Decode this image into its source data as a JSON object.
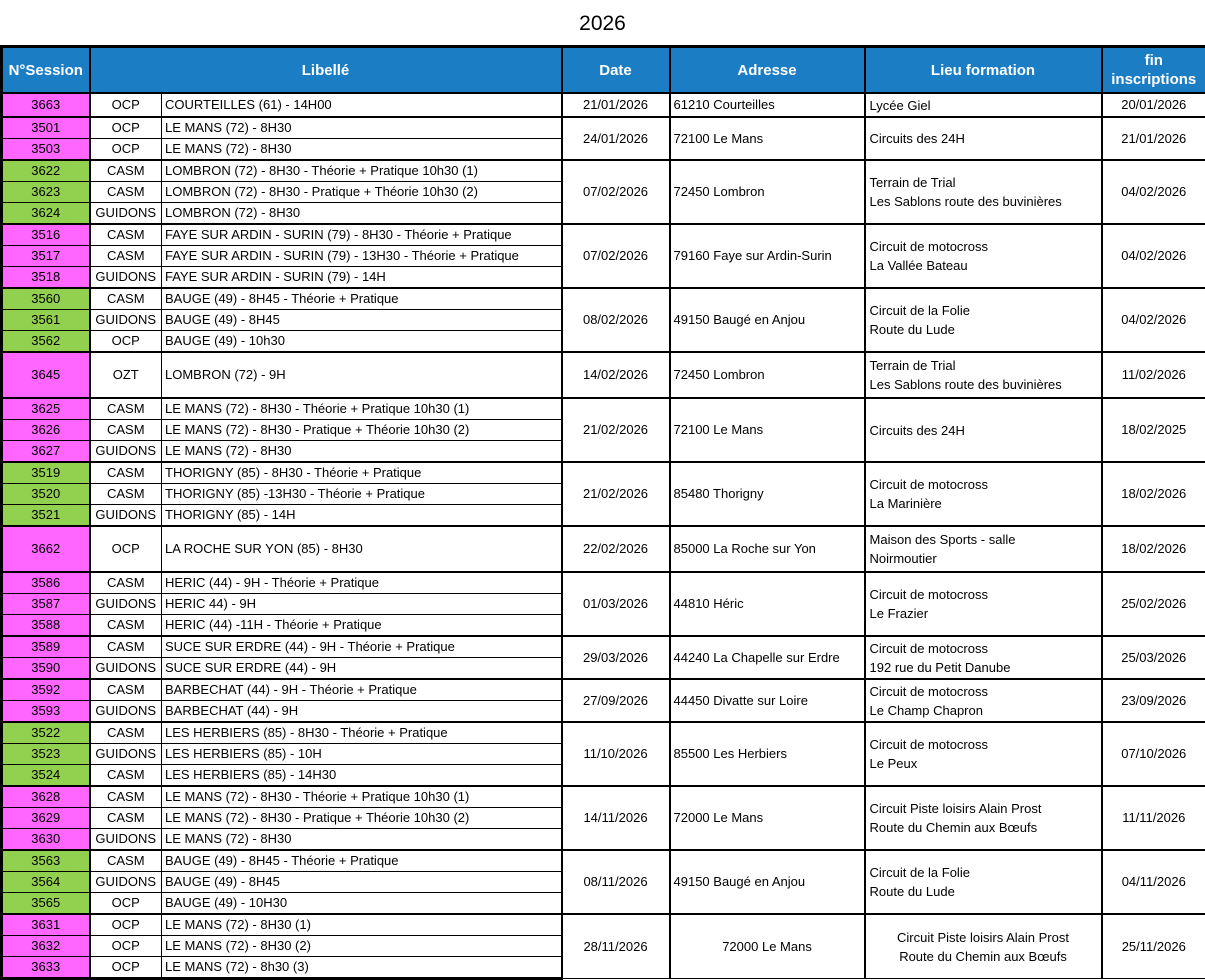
{
  "title": "2026",
  "columns": {
    "session": "N°Session",
    "libelle": "Libellé",
    "date": "Date",
    "adresse": "Adresse",
    "lieu": "Lieu formation",
    "fin": "fin inscriptions"
  },
  "colors": {
    "header_bg": "#1B7EC5",
    "header_text": "#FFFFFF",
    "pink": "#FF66FF",
    "green": "#92D050",
    "border": "#000000",
    "cell_bg": "#FFFFFF"
  },
  "groups": [
    {
      "date": "21/01/2026",
      "adresse": "61210 Courteilles",
      "lieu": [
        "Lycée Giel"
      ],
      "fin": "20/01/2026",
      "sessions": [
        {
          "num": "3663",
          "color": "pink",
          "type": "OCP",
          "libelle": "COURTEILLES (61) - 14H00"
        }
      ]
    },
    {
      "date": "24/01/2026",
      "adresse": "72100 Le Mans",
      "lieu": [
        "Circuits des 24H"
      ],
      "fin": "21/01/2026",
      "sessions": [
        {
          "num": "3501",
          "color": "pink",
          "type": "OCP",
          "libelle": "LE MANS (72) - 8H30"
        },
        {
          "num": "3503",
          "color": "pink",
          "type": "OCP",
          "libelle": "LE MANS (72) - 8H30"
        }
      ]
    },
    {
      "date": "07/02/2026",
      "adresse": "72450 Lombron",
      "lieu": [
        "Terrain de Trial",
        "Les Sablons route des buvinières"
      ],
      "fin": "04/02/2026",
      "sessions": [
        {
          "num": "3622",
          "color": "green",
          "type": "CASM",
          "libelle": "LOMBRON (72) - 8H30 - Théorie + Pratique 10h30 (1)"
        },
        {
          "num": "3623",
          "color": "green",
          "type": "CASM",
          "libelle": "LOMBRON (72) - 8H30 - Pratique + Théorie 10h30 (2)"
        },
        {
          "num": "3624",
          "color": "green",
          "type": "GUIDONS",
          "libelle": "LOMBRON (72) - 8H30"
        }
      ]
    },
    {
      "date": "07/02/2026",
      "adresse": "79160 Faye sur Ardin-Surin",
      "lieu": [
        "Circuit de motocross",
        "La Vallée Bateau"
      ],
      "fin": "04/02/2026",
      "sessions": [
        {
          "num": "3516",
          "color": "pink",
          "type": "CASM",
          "libelle": "FAYE SUR ARDIN - SURIN (79) - 8H30 - Théorie + Pratique"
        },
        {
          "num": "3517",
          "color": "pink",
          "type": "CASM",
          "libelle": "FAYE SUR ARDIN - SURIN (79) - 13H30 - Théorie + Pratique"
        },
        {
          "num": "3518",
          "color": "pink",
          "type": "GUIDONS",
          "libelle": "FAYE SUR ARDIN - SURIN (79) - 14H"
        }
      ]
    },
    {
      "date": "08/02/2026",
      "adresse": "49150 Baugé en Anjou",
      "lieu": [
        "Circuit de la Folie",
        "Route du Lude"
      ],
      "fin": "04/02/2026",
      "sessions": [
        {
          "num": "3560",
          "color": "green",
          "type": "CASM",
          "libelle": "BAUGE (49) - 8H45 - Théorie + Pratique"
        },
        {
          "num": "3561",
          "color": "green",
          "type": "GUIDONS",
          "libelle": "BAUGE (49) - 8H45"
        },
        {
          "num": "3562",
          "color": "green",
          "type": "OCP",
          "libelle": "BAUGE (49) - 10h30"
        }
      ]
    },
    {
      "date": "14/02/2026",
      "adresse": "72450 Lombron",
      "tall": true,
      "lieu": [
        "Terrain de Trial",
        "Les Sablons route des buvinières"
      ],
      "fin": "11/02/2026",
      "sessions": [
        {
          "num": "3645",
          "color": "pink",
          "type": "OZT",
          "libelle": "LOMBRON (72) - 9H"
        }
      ]
    },
    {
      "date": "21/02/2026",
      "adresse": "72100 Le Mans",
      "lieu": [
        "Circuits des 24H"
      ],
      "fin": "18/02/2025",
      "sessions": [
        {
          "num": "3625",
          "color": "pink",
          "type": "CASM",
          "libelle": "LE MANS (72) - 8H30 - Théorie + Pratique 10h30 (1)"
        },
        {
          "num": "3626",
          "color": "pink",
          "type": "CASM",
          "libelle": "LE MANS (72) - 8H30 - Pratique + Théorie 10h30 (2)"
        },
        {
          "num": "3627",
          "color": "pink",
          "type": "GUIDONS",
          "libelle": "LE MANS (72) - 8H30"
        }
      ]
    },
    {
      "date": "21/02/2026",
      "adresse": "85480 Thorigny",
      "lieu": [
        "Circuit de motocross",
        "La Marinière"
      ],
      "fin": "18/02/2026",
      "sessions": [
        {
          "num": "3519",
          "color": "green",
          "type": "CASM",
          "libelle": "THORIGNY (85) - 8H30 - Théorie + Pratique"
        },
        {
          "num": "3520",
          "color": "green",
          "type": "CASM",
          "libelle": "THORIGNY (85) -13H30 - Théorie + Pratique"
        },
        {
          "num": "3521",
          "color": "green",
          "type": "GUIDONS",
          "libelle": "THORIGNY (85) - 14H"
        }
      ]
    },
    {
      "date": "22/02/2026",
      "adresse": "85000 La Roche sur Yon",
      "tall": true,
      "lieu": [
        "Maison des Sports - salle",
        "Noirmoutier"
      ],
      "fin": "18/02/2026",
      "sessions": [
        {
          "num": "3662",
          "color": "pink",
          "type": "OCP",
          "libelle": "LA ROCHE SUR YON (85) - 8H30"
        }
      ]
    },
    {
      "date": "01/03/2026",
      "adresse": "44810 Héric",
      "lieu": [
        "Circuit de motocross",
        "Le Frazier"
      ],
      "fin": "25/02/2026",
      "sessions": [
        {
          "num": "3586",
          "color": "pink",
          "type": "CASM",
          "libelle": "HERIC (44) - 9H - Théorie + Pratique"
        },
        {
          "num": "3587",
          "color": "pink",
          "type": "GUIDONS",
          "libelle": "HERIC 44) - 9H"
        },
        {
          "num": "3588",
          "color": "pink",
          "type": "CASM",
          "libelle": "HERIC (44) -11H - Théorie + Pratique"
        }
      ]
    },
    {
      "date": "29/03/2026",
      "adresse": "44240 La Chapelle sur Erdre",
      "lieu": [
        "Circuit de motocross",
        "192 rue du Petit Danube"
      ],
      "fin": "25/03/2026",
      "sessions": [
        {
          "num": "3589",
          "color": "pink",
          "type": "CASM",
          "libelle": "SUCE SUR ERDRE (44) - 9H - Théorie + Pratique"
        },
        {
          "num": "3590",
          "color": "pink",
          "type": "GUIDONS",
          "libelle": "SUCE SUR ERDRE (44) - 9H"
        }
      ]
    },
    {
      "date": "27/09/2026",
      "adresse": "44450 Divatte sur Loire",
      "lieu": [
        "Circuit de motocross",
        "Le Champ Chapron"
      ],
      "fin": "23/09/2026",
      "sessions": [
        {
          "num": "3592",
          "color": "pink",
          "type": "CASM",
          "libelle": "BARBECHAT (44) - 9H - Théorie + Pratique"
        },
        {
          "num": "3593",
          "color": "pink",
          "type": "GUIDONS",
          "libelle": "BARBECHAT (44) - 9H"
        }
      ]
    },
    {
      "date": "11/10/2026",
      "adresse": "85500 Les Herbiers",
      "lieu": [
        "Circuit de motocross",
        "Le Peux"
      ],
      "fin": "07/10/2026",
      "sessions": [
        {
          "num": "3522",
          "color": "green",
          "type": "CASM",
          "libelle": "LES HERBIERS (85) - 8H30 - Théorie + Pratique"
        },
        {
          "num": "3523",
          "color": "green",
          "type": "GUIDONS",
          "libelle": "LES HERBIERS (85) - 10H"
        },
        {
          "num": "3524",
          "color": "green",
          "type": "CASM",
          "libelle": "LES HERBIERS (85) - 14H30"
        }
      ]
    },
    {
      "date": "14/11/2026",
      "adresse": "72000 Le Mans",
      "lieu": [
        "Circuit Piste loisirs Alain Prost",
        "Route du Chemin aux Bœufs"
      ],
      "fin": "11/11/2026",
      "sessions": [
        {
          "num": "3628",
          "color": "pink",
          "type": "CASM",
          "libelle": "LE MANS (72) - 8H30 - Théorie + Pratique 10h30 (1)"
        },
        {
          "num": "3629",
          "color": "pink",
          "type": "CASM",
          "libelle": "LE MANS (72) - 8H30 - Pratique + Théorie 10h30 (2)"
        },
        {
          "num": "3630",
          "color": "pink",
          "type": "GUIDONS",
          "libelle": "LE MANS (72) - 8H30"
        }
      ]
    },
    {
      "date": "08/11/2026",
      "adresse": "49150 Baugé en Anjou",
      "lieu": [
        "Circuit de la Folie",
        "Route du Lude"
      ],
      "fin": "04/11/2026",
      "sessions": [
        {
          "num": "3563",
          "color": "green",
          "type": "CASM",
          "libelle": "BAUGE (49) - 8H45 - Théorie + Pratique"
        },
        {
          "num": "3564",
          "color": "green",
          "type": "GUIDONS",
          "libelle": "BAUGE (49) - 8H45"
        },
        {
          "num": "3565",
          "color": "green",
          "type": "OCP",
          "libelle": "BAUGE (49) - 10H30"
        }
      ]
    },
    {
      "date": "28/11/2026",
      "adresse": "72000 Le Mans",
      "centered": true,
      "lieu": [
        "Circuit Piste loisirs Alain Prost",
        "Route du Chemin aux Bœufs"
      ],
      "fin": "25/11/2026",
      "sessions": [
        {
          "num": "3631",
          "color": "pink",
          "type": "OCP",
          "libelle": "LE MANS (72) - 8H30 (1)"
        },
        {
          "num": "3632",
          "color": "pink",
          "type": "OCP",
          "libelle": "LE MANS (72) - 8H30 (2)"
        },
        {
          "num": "3633",
          "color": "pink",
          "type": "OCP",
          "libelle": "LE MANS (72) - 8h30 (3)"
        }
      ]
    }
  ]
}
